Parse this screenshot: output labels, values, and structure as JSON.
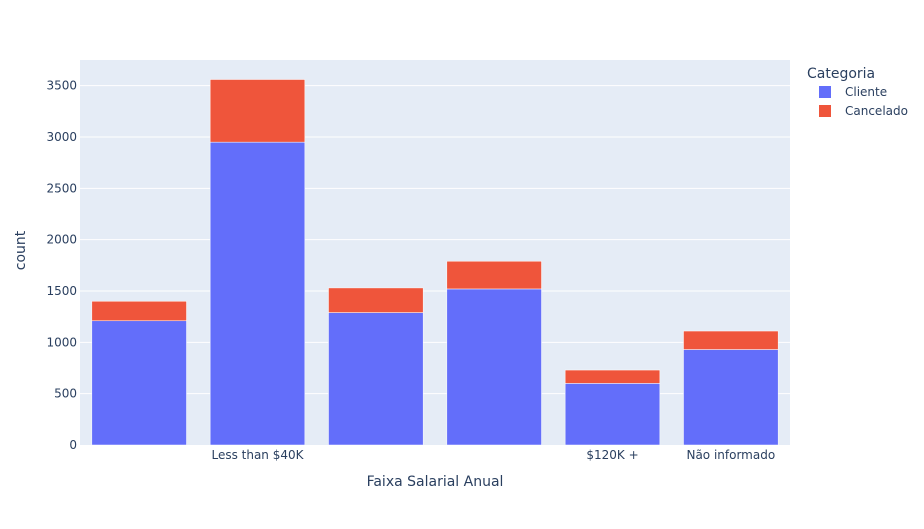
{
  "chart_data": {
    "type": "bar",
    "barmode": "stack",
    "title": "",
    "xlabel": "Faixa Salarial Anual",
    "ylabel": "count",
    "ylim": [
      0,
      3750
    ],
    "yticks": [
      0,
      500,
      1000,
      1500,
      2000,
      2500,
      3000,
      3500
    ],
    "categories": [
      "",
      "Less than $40K",
      "",
      "",
      "$120K +",
      "Não informado"
    ],
    "series": [
      {
        "name": "Cliente",
        "color": "#636efa",
        "values": [
          1210,
          2950,
          1290,
          1520,
          600,
          930
        ]
      },
      {
        "name": "Cancelado",
        "color": "#ef553b",
        "values": [
          190,
          610,
          240,
          270,
          130,
          180
        ]
      }
    ],
    "legend": {
      "title": "Categoria",
      "placement": "top-right"
    },
    "grid": true,
    "plot_background": "#e5ecf6"
  }
}
